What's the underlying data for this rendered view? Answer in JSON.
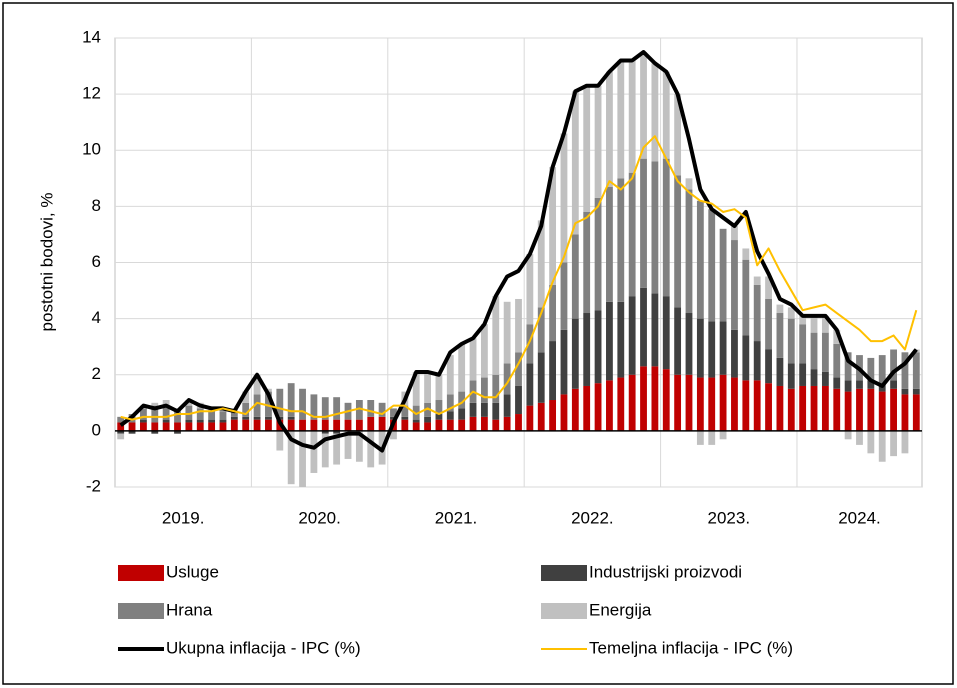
{
  "chart_data": {
    "type": "bar",
    "stacked": true,
    "y_label": "postotni bodovi, %",
    "categories": [
      "2019.",
      null,
      null,
      null,
      null,
      null,
      null,
      null,
      null,
      null,
      null,
      null,
      "2020.",
      null,
      null,
      null,
      null,
      null,
      null,
      null,
      null,
      null,
      null,
      null,
      "2021.",
      null,
      null,
      null,
      null,
      null,
      null,
      null,
      null,
      null,
      null,
      null,
      "2022.",
      null,
      null,
      null,
      null,
      null,
      null,
      null,
      null,
      null,
      null,
      null,
      "2023.",
      null,
      null,
      null,
      null,
      null,
      null,
      null,
      null,
      null,
      null,
      null,
      "2024.",
      null,
      null,
      null,
      null,
      null,
      null,
      null,
      null,
      null,
      null
    ],
    "ylim": [
      -2,
      14
    ],
    "yticks": [
      -2,
      0,
      2,
      4,
      6,
      8,
      10,
      12,
      14
    ],
    "grid": true,
    "series": [
      {
        "name": "Usluge",
        "color": "#c00000",
        "values": [
          0.3,
          0.3,
          0.3,
          0.3,
          0.3,
          0.3,
          0.3,
          0.3,
          0.3,
          0.3,
          0.4,
          0.4,
          0.4,
          0.4,
          0.4,
          0.4,
          0.4,
          0.4,
          0.4,
          0.4,
          0.4,
          0.4,
          0.5,
          0.5,
          0.4,
          0.4,
          0.3,
          0.3,
          0.4,
          0.4,
          0.4,
          0.5,
          0.5,
          0.4,
          0.5,
          0.6,
          0.9,
          1.0,
          1.1,
          1.3,
          1.5,
          1.6,
          1.7,
          1.8,
          1.9,
          2.0,
          2.3,
          2.3,
          2.2,
          2.0,
          2.0,
          1.9,
          1.9,
          2.0,
          1.9,
          1.8,
          1.8,
          1.7,
          1.6,
          1.5,
          1.6,
          1.6,
          1.6,
          1.5,
          1.4,
          1.5,
          1.5,
          1.4,
          1.5,
          1.3,
          1.3
        ]
      },
      {
        "name": "Industrijski proizvodi",
        "color": "#404040",
        "values": [
          -0.1,
          -0.1,
          0.1,
          -0.1,
          0.1,
          -0.1,
          0.1,
          0.1,
          0.1,
          0.1,
          0.1,
          0.1,
          0.1,
          0.1,
          0.1,
          0.1,
          0,
          0,
          -0.1,
          -0.1,
          0,
          0,
          0,
          0,
          0.1,
          0.1,
          0.1,
          0.2,
          0.2,
          0.3,
          0.4,
          0.5,
          0.5,
          0.6,
          0.8,
          1.0,
          1.5,
          1.8,
          2.1,
          2.3,
          2.5,
          2.6,
          2.6,
          2.8,
          2.7,
          2.8,
          2.8,
          2.6,
          2.6,
          2.4,
          2.2,
          2.1,
          2.0,
          1.9,
          1.7,
          1.6,
          1.4,
          1.2,
          1.0,
          0.9,
          0.8,
          0.6,
          0.5,
          0.4,
          0.4,
          0.3,
          0.3,
          0.3,
          0.3,
          0.2,
          0.2
        ]
      },
      {
        "name": "Hrana",
        "color": "#808080",
        "values": [
          0.2,
          0.3,
          0.4,
          0.6,
          0.5,
          0.4,
          0.5,
          0.4,
          0.3,
          0.3,
          0.2,
          0.5,
          0.8,
          0.9,
          1.0,
          1.2,
          1.1,
          0.9,
          0.8,
          0.8,
          0.6,
          0.7,
          0.6,
          0.5,
          0.3,
          0.4,
          0.5,
          0.5,
          0.5,
          0.6,
          0.6,
          0.8,
          0.9,
          1.0,
          1.1,
          1.2,
          1.4,
          1.6,
          2.0,
          2.4,
          3.0,
          3.6,
          4.0,
          4.1,
          4.4,
          4.4,
          4.6,
          4.7,
          4.9,
          4.7,
          4.4,
          4.2,
          4.0,
          3.3,
          3.2,
          2.7,
          2.0,
          1.8,
          1.6,
          1.6,
          1.4,
          1.3,
          1.4,
          1.2,
          1.0,
          0.9,
          0.8,
          1.0,
          1.1,
          1.3,
          1.3
        ]
      },
      {
        "name": "Energija",
        "color": "#c0c0c0",
        "values": [
          -0.2,
          0,
          0.1,
          0.1,
          0.2,
          0.1,
          0.2,
          0.2,
          0.1,
          0.1,
          0.1,
          0.4,
          0.7,
          0.1,
          -0.7,
          -1.9,
          -2.0,
          -1.5,
          -1.2,
          -1.1,
          -1.0,
          -1.1,
          -1.3,
          -1.2,
          -0.3,
          0.5,
          1.2,
          1.1,
          0.9,
          1.4,
          1.7,
          1.5,
          1.9,
          2.8,
          2.2,
          1.9,
          2.5,
          3.1,
          4.2,
          4.6,
          5.1,
          4.5,
          4.0,
          4.1,
          4.2,
          4.0,
          3.8,
          3.5,
          3.1,
          2.9,
          0.4,
          -0.5,
          -0.5,
          -0.3,
          0.5,
          0.4,
          0.3,
          0.8,
          0.3,
          0.4,
          0.3,
          0.6,
          0.6,
          0.5,
          -0.3,
          -0.5,
          -0.8,
          -1.1,
          -0.9,
          -0.8,
          0.1
        ]
      },
      {
        "name": "Ukupna inflacija - IPC (%)",
        "type": "line",
        "color": "#000000",
        "values": [
          0.2,
          0.5,
          0.9,
          0.8,
          0.9,
          0.7,
          1.1,
          0.9,
          0.8,
          0.8,
          0.7,
          1.4,
          2.0,
          1.3,
          0.3,
          -0.3,
          -0.5,
          -0.6,
          -0.3,
          -0.2,
          -0.1,
          -0.1,
          -0.4,
          -0.7,
          0.3,
          1.1,
          2.1,
          2.1,
          2.0,
          2.8,
          3.1,
          3.3,
          3.8,
          4.8,
          5.5,
          5.7,
          6.3,
          7.3,
          9.4,
          10.6,
          12.1,
          12.3,
          12.3,
          12.8,
          13.2,
          13.2,
          13.5,
          13.1,
          12.8,
          12.0,
          10.4,
          8.6,
          7.9,
          7.6,
          7.3,
          7.8,
          6.4,
          5.6,
          4.7,
          4.5,
          4.1,
          4.1,
          4.1,
          3.6,
          2.5,
          2.2,
          1.8,
          1.6,
          2.1,
          2.4,
          2.9
        ]
      },
      {
        "name": "Temeljna inflacija - IPC (%)",
        "type": "line",
        "color": "#ffc000",
        "values": [
          0.5,
          0.4,
          0.5,
          0.5,
          0.5,
          0.6,
          0.6,
          0.7,
          0.7,
          0.8,
          0.7,
          0.6,
          1.0,
          0.9,
          0.8,
          0.7,
          0.7,
          0.5,
          0.5,
          0.6,
          0.7,
          0.8,
          0.7,
          0.6,
          0.9,
          0.9,
          0.6,
          0.8,
          0.6,
          0.8,
          1.0,
          1.4,
          1.2,
          1.2,
          1.7,
          2.4,
          3.2,
          4.2,
          5.3,
          6.2,
          7.4,
          7.6,
          8.0,
          8.9,
          8.6,
          9.0,
          10.1,
          10.5,
          9.7,
          8.9,
          8.5,
          8.2,
          8.1,
          7.8,
          7.9,
          7.6,
          5.9,
          6.5,
          5.7,
          5.0,
          4.3,
          4.4,
          4.5,
          4.2,
          3.9,
          3.6,
          3.2,
          3.2,
          3.4,
          2.9,
          4.3
        ]
      }
    ]
  }
}
